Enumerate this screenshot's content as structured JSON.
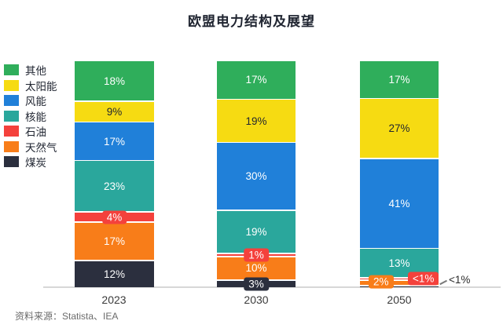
{
  "title": "欧盟电力结构及展望",
  "source": "资料来源：Statista、IEA",
  "legend": {
    "position": "left",
    "items": [
      "其他",
      "太阳能",
      "风能",
      "核能",
      "石油",
      "天然气",
      "煤炭"
    ]
  },
  "chart_data": {
    "type": "bar",
    "stacked": true,
    "unit": "%",
    "title": "欧盟电力结构及展望",
    "categories": [
      "2023",
      "2030",
      "2050"
    ],
    "ylim": [
      0,
      100
    ],
    "grid": false,
    "legend_position": "left",
    "series": [
      {
        "name": "煤炭",
        "color": "#2b2f3e",
        "values": [
          12,
          3,
          0.5
        ],
        "labels": [
          "12%",
          "3%",
          "<1%"
        ],
        "label_modes": [
          "inside",
          "badge",
          "external"
        ]
      },
      {
        "name": "天然气",
        "color": "#f87d19",
        "values": [
          17,
          10,
          2
        ],
        "labels": [
          "17%",
          "10%",
          "2%"
        ],
        "label_modes": [
          "inside",
          "inside",
          "badge-left"
        ]
      },
      {
        "name": "石油",
        "color": "#f4413c",
        "values": [
          4,
          1,
          0.5
        ],
        "labels": [
          "4%",
          "1%",
          "<1%"
        ],
        "label_modes": [
          "badge",
          "badge",
          "badge-right"
        ]
      },
      {
        "name": "核能",
        "color": "#2aa79c",
        "values": [
          23,
          19,
          13
        ],
        "labels": [
          "23%",
          "19%",
          "13%"
        ],
        "label_modes": [
          "inside",
          "inside",
          "inside"
        ]
      },
      {
        "name": "风能",
        "color": "#2080d9",
        "values": [
          17,
          30,
          41
        ],
        "labels": [
          "17%",
          "30%",
          "41%"
        ],
        "label_modes": [
          "inside",
          "inside",
          "inside"
        ]
      },
      {
        "name": "太阳能",
        "color": "#f6db12",
        "values": [
          9,
          19,
          27
        ],
        "labels": [
          "9%",
          "19%",
          "27%"
        ],
        "label_modes": [
          "inside",
          "inside",
          "inside"
        ],
        "text_color": "#1f2430"
      },
      {
        "name": "其他",
        "color": "#2fae5b",
        "values": [
          18,
          17,
          17
        ],
        "labels": [
          "18%",
          "17%",
          "17%"
        ],
        "label_modes": [
          "inside",
          "inside",
          "inside"
        ]
      }
    ],
    "annotations": [
      {
        "text": "<1%",
        "category": "2050",
        "series": "煤炭",
        "position": "right-of-bar"
      }
    ]
  }
}
